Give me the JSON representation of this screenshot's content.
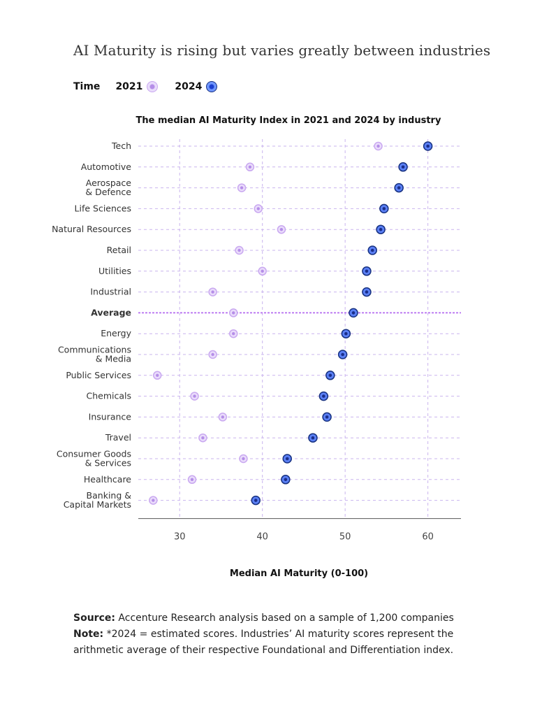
{
  "title": "AI Maturity is rising but varies greatly between industries",
  "legend": {
    "label": "Time",
    "year_2021": "2021",
    "year_2024": "2024"
  },
  "colors": {
    "c2021": "#c9a8f0",
    "c2024": "#2f55e6",
    "average_line": "#b56cf0",
    "grid": "#c9b4ee"
  },
  "footer": {
    "source_label": "Source:",
    "source_text": " Accenture Research analysis based on a sample of 1,200 companies",
    "note_label": "Note:",
    "note_text": " *2024 = estimated scores. Industries’ AI maturity scores represent the arithmetic average of their respective Foundational and Differentiation index."
  },
  "chart_data": {
    "type": "dumbbell",
    "title": "The median AI Maturity Index in 2021 and 2024 by industry",
    "xlabel": "Median AI Maturity (0-100)",
    "xlim": [
      25,
      64
    ],
    "xticks": [
      30,
      40,
      50,
      60
    ],
    "grid": true,
    "legend_position": "top-left",
    "series": [
      {
        "name": "2021"
      },
      {
        "name": "2024"
      }
    ],
    "categories": [
      {
        "label": "Tech",
        "v2021": 54,
        "v2024": 60
      },
      {
        "label": "Automotive",
        "v2021": 38.5,
        "v2024": 57
      },
      {
        "label": "Aerospace\n& Defence",
        "v2021": 37.5,
        "v2024": 56.5
      },
      {
        "label": "Life Sciences",
        "v2021": 39.5,
        "v2024": 54.7
      },
      {
        "label": "Natural Resources",
        "v2021": 42.3,
        "v2024": 54.3
      },
      {
        "label": "Retail",
        "v2021": 37.2,
        "v2024": 53.3
      },
      {
        "label": "Utilities",
        "v2021": 40,
        "v2024": 52.6
      },
      {
        "label": "Industrial",
        "v2021": 34,
        "v2024": 52.6
      },
      {
        "label": "Average",
        "v2021": 36.5,
        "v2024": 51,
        "highlight": true
      },
      {
        "label": "Energy",
        "v2021": 36.5,
        "v2024": 50.1
      },
      {
        "label": "Communications\n& Media",
        "v2021": 34,
        "v2024": 49.7
      },
      {
        "label": "Public Services",
        "v2021": 27.3,
        "v2024": 48.2
      },
      {
        "label": "Chemicals",
        "v2021": 31.8,
        "v2024": 47.4
      },
      {
        "label": "Insurance",
        "v2021": 35.2,
        "v2024": 47.8
      },
      {
        "label": "Travel",
        "v2021": 32.8,
        "v2024": 46.1
      },
      {
        "label": "Consumer Goods\n& Services",
        "v2021": 37.7,
        "v2024": 43
      },
      {
        "label": "Healthcare",
        "v2021": 31.5,
        "v2024": 42.8
      },
      {
        "label": "Banking &\nCapital Markets",
        "v2021": 26.8,
        "v2024": 39.2
      }
    ]
  }
}
